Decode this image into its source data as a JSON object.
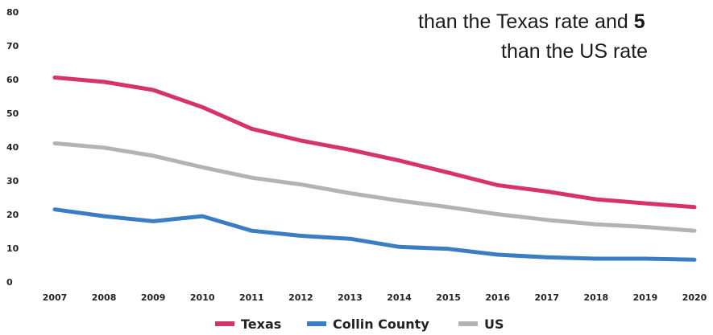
{
  "callout": {
    "line1": "than the Texas rate and ",
    "line1_bold": "5",
    "line2": "than the US rate"
  },
  "chart_data": {
    "type": "line",
    "title": "",
    "xlabel": "",
    "ylabel": "",
    "ylim": [
      0,
      80
    ],
    "yticks": [
      0,
      10,
      20,
      30,
      40,
      50,
      60,
      70,
      80
    ],
    "x": [
      "2007",
      "2008",
      "2009",
      "2010",
      "2011",
      "2012",
      "2013",
      "2014",
      "2015",
      "2016",
      "2017",
      "2018",
      "2019",
      "2020"
    ],
    "grid": false,
    "legend_position": "bottom",
    "series": [
      {
        "name": "Texas",
        "color": "#d6336c",
        "values": [
          60.6,
          59.3,
          56.9,
          51.8,
          45.4,
          41.9,
          39.2,
          36.0,
          32.4,
          28.7,
          26.8,
          24.5,
          23.3,
          22.2
        ]
      },
      {
        "name": "Collin County",
        "color": "#3a7dc4",
        "values": [
          21.5,
          19.5,
          18.0,
          19.5,
          15.2,
          13.7,
          12.8,
          10.4,
          9.8,
          8.1,
          7.3,
          6.9,
          6.9,
          6.6
        ]
      },
      {
        "name": "US",
        "color": "#b3b3b3",
        "values": [
          41.1,
          39.8,
          37.4,
          34.0,
          30.9,
          28.9,
          26.3,
          24.1,
          22.2,
          20.1,
          18.4,
          17.1,
          16.3,
          15.2
        ]
      }
    ]
  }
}
